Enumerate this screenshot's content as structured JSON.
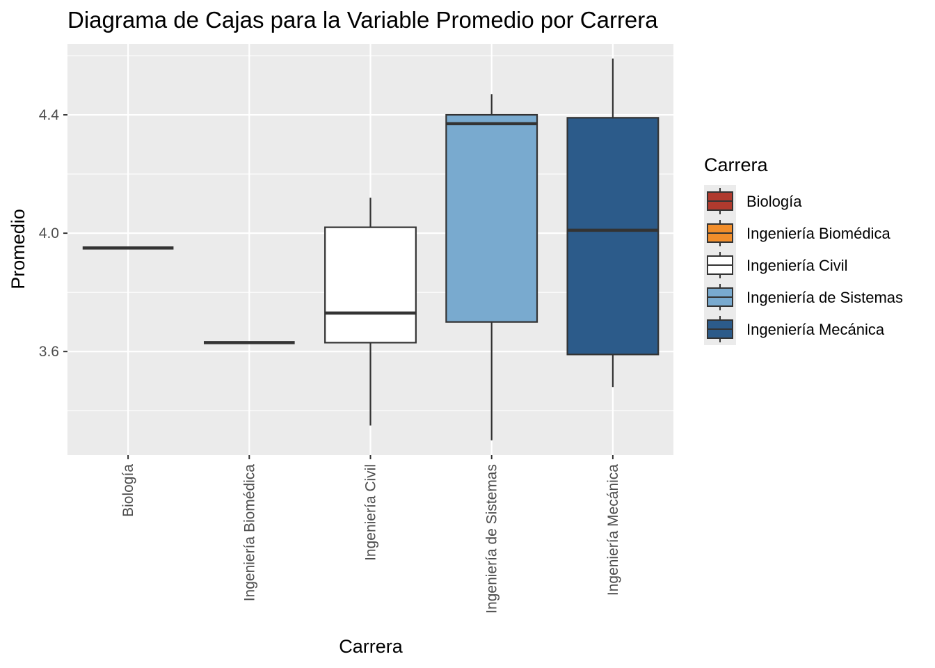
{
  "chart_data": {
    "type": "boxplot",
    "title": "Diagrama de Cajas para la Variable Promedio por Carrera",
    "xlabel": "Carrera",
    "ylabel": "Promedio",
    "ylim": [
      3.25,
      4.64
    ],
    "yticks": [
      "3.6",
      "4.0",
      "4.4"
    ],
    "categories": [
      "Biología",
      "Ingeniería Biomédica",
      "Ingeniería Civil",
      "Ingeniería de Sistemas",
      "Ingeniería Mecánica"
    ],
    "boxes": [
      {
        "category": "Biología",
        "min": 3.95,
        "q1": 3.95,
        "median": 3.95,
        "q3": 3.95,
        "max": 3.95,
        "color": "#b03a2e"
      },
      {
        "category": "Ingeniería Biomédica",
        "min": 3.63,
        "q1": 3.63,
        "median": 3.63,
        "q3": 3.63,
        "max": 3.63,
        "color": "#f28e2b"
      },
      {
        "category": "Ingeniería Civil",
        "min": 3.35,
        "q1": 3.63,
        "median": 3.73,
        "q3": 4.02,
        "max": 4.12,
        "color": "#ffffff"
      },
      {
        "category": "Ingeniería de Sistemas",
        "min": 3.3,
        "q1": 3.7,
        "median": 4.37,
        "q3": 4.4,
        "max": 4.47,
        "color": "#79aacf"
      },
      {
        "category": "Ingeniería Mecánica",
        "min": 3.48,
        "q1": 3.59,
        "median": 4.01,
        "q3": 4.39,
        "max": 4.59,
        "color": "#2c5b8a"
      }
    ],
    "legend": {
      "title": "Carrera",
      "position": "right",
      "items": [
        "Biología",
        "Ingeniería Biomédica",
        "Ingeniería Civil",
        "Ingeniería de Sistemas",
        "Ingeniería Mecánica"
      ]
    },
    "grid": true,
    "panel_background": "#ebebeb"
  }
}
